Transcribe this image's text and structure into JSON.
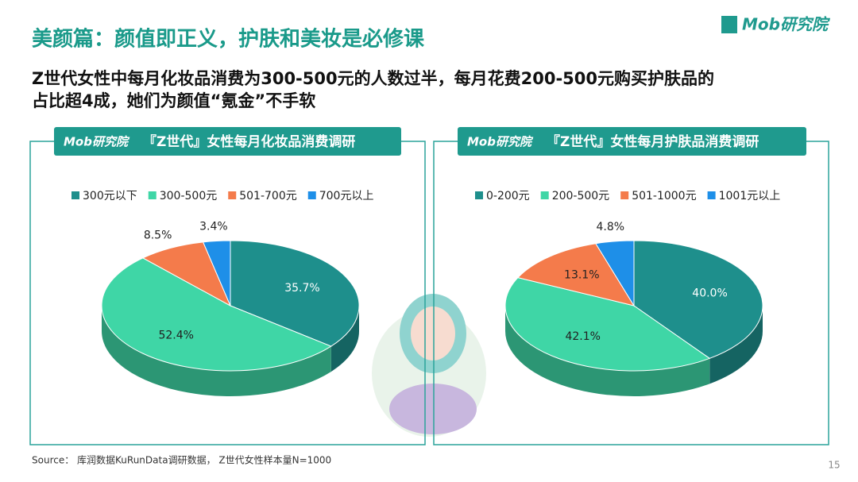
{
  "header": {
    "title": "美颜篇：颜值即正义，护肤和美妆是必修课",
    "subtitle_lines": [
      "Z世代女性中每月化妆品消费为300-500元的人数过半，每月花费200-500元购买护肤品的",
      "占比超4成，她们为颜值“氪金”不手软"
    ]
  },
  "logo": "Mob研究院",
  "source": "Source： 库润数据KuRunData调研数据， Z世代女性样本量N=1000",
  "page_number": "15",
  "chart_data": [
    {
      "type": "pie",
      "title": "『Z世代』女性每月化妆品消费调研",
      "categories": [
        "300元以下",
        "300-500元",
        "501-700元",
        "700元以上"
      ],
      "values": [
        35.7,
        52.4,
        8.5,
        3.4
      ],
      "value_labels": [
        "35.7%",
        "52.4%",
        "8.5%",
        "3.4%"
      ],
      "colors": [
        "#1e8f8c",
        "#3fd6a6",
        "#f47b4b",
        "#1e8fe8"
      ],
      "legend": "top"
    },
    {
      "type": "pie",
      "title": "『Z世代』女性每月护肤品消费调研",
      "categories": [
        "0-200元",
        "200-500元",
        "501-1000元",
        "1001元以上"
      ],
      "values": [
        40.0,
        42.1,
        13.1,
        4.8
      ],
      "value_labels": [
        "40.0%",
        "42.1%",
        "13.1%",
        "4.8%"
      ],
      "colors": [
        "#1e8f8c",
        "#3fd6a6",
        "#f47b4b",
        "#1e8fe8"
      ],
      "legend": "top"
    }
  ]
}
